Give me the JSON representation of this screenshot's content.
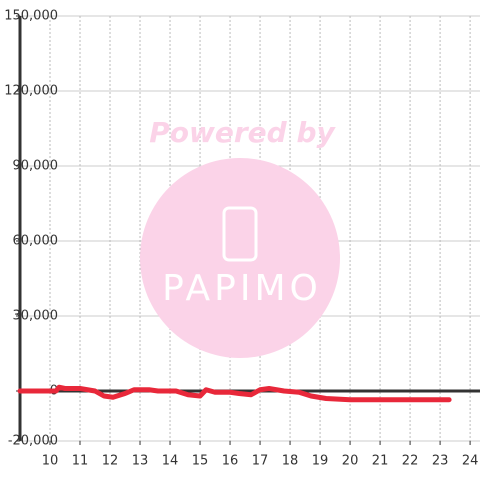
{
  "chart_data": {
    "type": "line",
    "x": [
      9,
      10.2,
      10.3,
      10.5,
      11,
      11.5,
      11.8,
      12.1,
      12.5,
      12.8,
      13.3,
      13.6,
      14.2,
      14.6,
      15,
      15.2,
      15.5,
      16,
      16.3,
      16.7,
      17,
      17.3,
      17.8,
      18.3,
      18.7,
      19.2,
      20,
      21,
      22,
      23.3
    ],
    "series": [
      {
        "color": "#e8283a",
        "values": [
          0,
          0,
          1500,
          1000,
          1000,
          0,
          -2000,
          -2500,
          -1000,
          500,
          500,
          0,
          0,
          -1500,
          -2000,
          500,
          -500,
          -500,
          -1000,
          -1500,
          500,
          1000,
          0,
          -500,
          -2000,
          -3000,
          -3500,
          -3500,
          -3500,
          -3500
        ]
      }
    ],
    "xlim": [
      9,
      24.33
    ],
    "xticks": [
      10,
      11,
      12,
      13,
      14,
      15,
      16,
      17,
      18,
      19,
      20,
      21,
      22,
      23,
      24
    ],
    "ylim": [
      -20000,
      150000
    ],
    "yticks": [
      {
        "value": -20000,
        "label": "-20,000"
      },
      0,
      {
        "value": 30000,
        "label": "30,000"
      },
      {
        "value": 60000,
        "label": "60,000"
      },
      {
        "value": 90000,
        "label": "90,000"
      },
      {
        "value": 120000,
        "label": "120,000"
      },
      {
        "value": 150000,
        "label": "150,000"
      }
    ],
    "grid": true,
    "watermark_text": "Powered by",
    "logo_text": "PAPIMO"
  }
}
